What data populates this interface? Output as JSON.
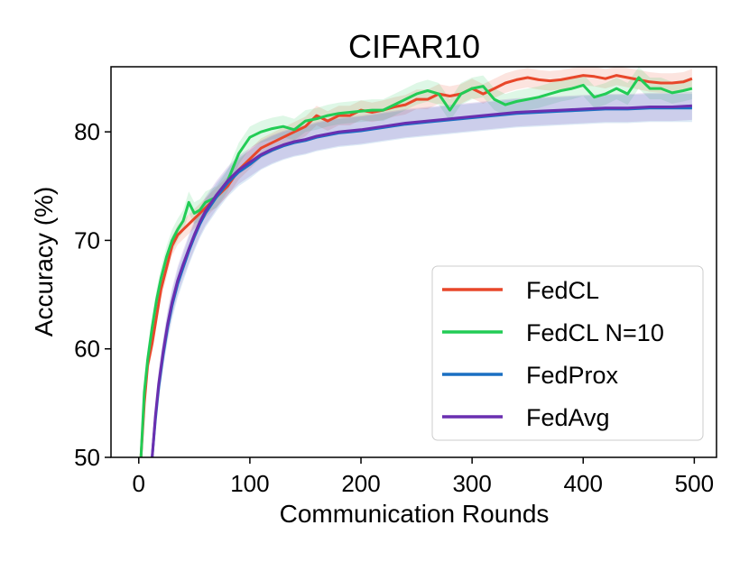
{
  "chart_data": {
    "type": "line",
    "title": "CIFAR10",
    "xlabel": "Communication Rounds",
    "ylabel": "Accuracy (%)",
    "xlim": [
      -25,
      520
    ],
    "ylim": [
      50,
      86
    ],
    "xticks": [
      0,
      100,
      200,
      300,
      400,
      500
    ],
    "yticks": [
      50,
      60,
      70,
      80
    ],
    "grid": false,
    "legend_position": "lower-right",
    "series": [
      {
        "name": "FedCL",
        "color": "#e8472a",
        "x": [
          2,
          5,
          8,
          12,
          16,
          20,
          25,
          30,
          35,
          40,
          45,
          50,
          55,
          60,
          70,
          80,
          90,
          100,
          110,
          120,
          130,
          140,
          150,
          160,
          170,
          180,
          190,
          200,
          210,
          220,
          230,
          240,
          250,
          260,
          270,
          280,
          290,
          300,
          310,
          320,
          330,
          340,
          350,
          360,
          370,
          380,
          390,
          400,
          410,
          420,
          430,
          440,
          450,
          460,
          470,
          480,
          490,
          498
        ],
        "y": [
          50,
          55,
          58.5,
          60.5,
          63,
          65.5,
          67.5,
          69.5,
          70.5,
          71,
          71.5,
          72,
          72.5,
          73,
          74,
          75,
          76.5,
          77.5,
          78.5,
          79,
          79.5,
          80,
          80.5,
          81.5,
          81,
          81.5,
          81.5,
          82,
          81.8,
          82,
          82.3,
          82.5,
          83,
          83,
          83.5,
          83.3,
          83.5,
          84,
          83.5,
          84,
          84.5,
          84.8,
          85,
          84.8,
          84.7,
          84.8,
          85,
          85.2,
          85.1,
          84.9,
          85.2,
          85,
          84.8,
          84.6,
          84.5,
          84.5,
          84.6,
          84.9
        ],
        "band": 0.9
      },
      {
        "name": "FedCL N=10",
        "color": "#22cc55",
        "x": [
          2,
          5,
          8,
          12,
          16,
          20,
          25,
          30,
          35,
          40,
          45,
          50,
          55,
          60,
          70,
          80,
          90,
          100,
          110,
          120,
          130,
          140,
          150,
          160,
          170,
          180,
          190,
          200,
          210,
          220,
          230,
          240,
          250,
          260,
          270,
          280,
          290,
          300,
          310,
          320,
          330,
          340,
          350,
          360,
          370,
          380,
          390,
          400,
          410,
          420,
          430,
          440,
          450,
          460,
          470,
          480,
          490,
          498
        ],
        "y": [
          50,
          56,
          59,
          62,
          64.5,
          66.5,
          68.5,
          70,
          71,
          71.8,
          73.5,
          72.5,
          72.8,
          73.5,
          74,
          75.5,
          78,
          79.5,
          80,
          80.3,
          80.5,
          80.2,
          81,
          81.2,
          81.5,
          81.7,
          81.8,
          81.9,
          82,
          82,
          82.5,
          83,
          83.5,
          83.8,
          83.5,
          82,
          83.5,
          84,
          84.2,
          83,
          82.5,
          82.8,
          83,
          83.2,
          83.5,
          83.8,
          84,
          84.3,
          83.2,
          83.5,
          84,
          83.5,
          85,
          84,
          84,
          83.6,
          83.8,
          84
        ],
        "band": 1.0
      },
      {
        "name": "FedProx",
        "color": "#1a6fc2",
        "x": [
          12,
          15,
          18,
          22,
          26,
          30,
          35,
          40,
          45,
          50,
          55,
          60,
          70,
          80,
          90,
          100,
          110,
          120,
          130,
          140,
          150,
          160,
          170,
          180,
          190,
          200,
          220,
          240,
          260,
          280,
          300,
          320,
          340,
          360,
          380,
          400,
          420,
          440,
          460,
          480,
          498
        ],
        "y": [
          50,
          53.5,
          56.5,
          59.5,
          62,
          64,
          66,
          67.5,
          69,
          70.3,
          71.5,
          72.5,
          74,
          75.3,
          76.3,
          77,
          77.8,
          78.3,
          78.7,
          79,
          79.2,
          79.5,
          79.7,
          79.9,
          80,
          80.1,
          80.4,
          80.7,
          80.9,
          81.1,
          81.3,
          81.5,
          81.7,
          81.8,
          81.9,
          82,
          82.1,
          82.1,
          82.2,
          82.2,
          82.2
        ],
        "band": 1.3
      },
      {
        "name": "FedAvg",
        "color": "#6a2fb0",
        "x": [
          12,
          15,
          18,
          22,
          26,
          30,
          35,
          40,
          45,
          50,
          55,
          60,
          70,
          80,
          90,
          100,
          110,
          120,
          130,
          140,
          150,
          160,
          170,
          180,
          190,
          200,
          220,
          240,
          260,
          280,
          300,
          320,
          340,
          360,
          380,
          400,
          420,
          440,
          460,
          480,
          498
        ],
        "y": [
          50,
          53.8,
          56.8,
          59.8,
          62.3,
          64.3,
          66.3,
          67.8,
          69.2,
          70.5,
          71.7,
          72.7,
          74.2,
          75.5,
          76.5,
          77.2,
          77.9,
          78.4,
          78.8,
          79.1,
          79.3,
          79.6,
          79.8,
          80,
          80.1,
          80.2,
          80.5,
          80.8,
          81,
          81.2,
          81.4,
          81.6,
          81.8,
          81.9,
          82,
          82.1,
          82.2,
          82.2,
          82.3,
          82.3,
          82.4
        ],
        "band": 1.3
      }
    ]
  }
}
